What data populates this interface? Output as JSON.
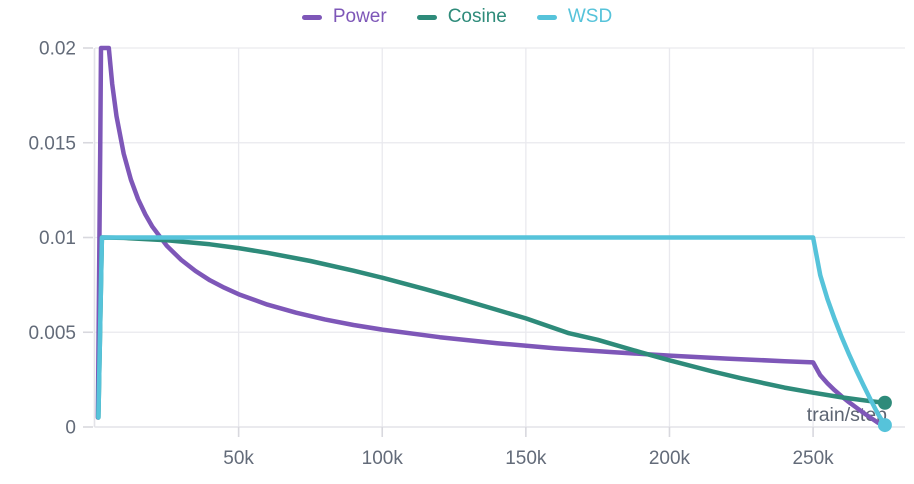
{
  "legend": {
    "items": [
      {
        "label": "Power",
        "color": "#7e57b8"
      },
      {
        "label": "Cosine",
        "color": "#2e8b7a"
      },
      {
        "label": "WSD",
        "color": "#56c3da"
      }
    ]
  },
  "chart_data": {
    "type": "line",
    "title": "",
    "xlabel": "train/step",
    "ylabel": "",
    "xlim": [
      0,
      282000
    ],
    "ylim": [
      0,
      0.02
    ],
    "grid": true,
    "legend_position": "top-center",
    "xticks": {
      "values": [
        50000,
        100000,
        150000,
        200000,
        250000
      ],
      "labels": [
        "50k",
        "100k",
        "150k",
        "200k",
        "250k"
      ]
    },
    "yticks": {
      "values": [
        0,
        0.005,
        0.01,
        0.015,
        0.02
      ],
      "labels": [
        "0",
        "0.005",
        "0.01",
        "0.015",
        "0.02"
      ]
    },
    "styles": {
      "grid_color": "#e9e9ee",
      "axis_color": "#e3e3e8",
      "tick_color": "#d8d8de",
      "label_color": "#636b79",
      "axis_title_color": "#5d6573",
      "line_width": 4.5,
      "marker_radius": 7
    },
    "series": [
      {
        "name": "Power",
        "color": "#7e57b8",
        "end_marker": false,
        "points": [
          [
            1000,
            0.0005
          ],
          [
            1400,
            0.0075
          ],
          [
            1800,
            0.0145
          ],
          [
            2100,
            0.02
          ],
          [
            4800,
            0.02
          ],
          [
            6000,
            0.0181
          ],
          [
            7500,
            0.0164
          ],
          [
            10000,
            0.01442
          ],
          [
            12500,
            0.01305
          ],
          [
            15000,
            0.01202
          ],
          [
            17500,
            0.01122
          ],
          [
            20000,
            0.01057
          ],
          [
            25000,
            0.00956
          ],
          [
            30000,
            0.00882
          ],
          [
            35000,
            0.00823
          ],
          [
            40000,
            0.00774
          ],
          [
            45000,
            0.00735
          ],
          [
            50000,
            0.00701
          ],
          [
            60000,
            0.00646
          ],
          [
            70000,
            0.00603
          ],
          [
            80000,
            0.00568
          ],
          [
            90000,
            0.00538
          ],
          [
            100000,
            0.00514
          ],
          [
            120000,
            0.00474
          ],
          [
            140000,
            0.00442
          ],
          [
            160000,
            0.00416
          ],
          [
            180000,
            0.00395
          ],
          [
            200000,
            0.00377
          ],
          [
            220000,
            0.00361
          ],
          [
            240000,
            0.00347
          ],
          [
            250000,
            0.00341
          ],
          [
            252500,
            0.00273
          ],
          [
            255000,
            0.00231
          ],
          [
            257500,
            0.00194
          ],
          [
            260000,
            0.00161
          ],
          [
            262500,
            0.00131
          ],
          [
            265000,
            0.00103
          ],
          [
            267500,
            0.00075
          ],
          [
            270000,
            0.00049
          ],
          [
            272500,
            0.00024
          ],
          [
            275000,
            8e-05
          ]
        ]
      },
      {
        "name": "Cosine",
        "color": "#2e8b7a",
        "end_marker": true,
        "points": [
          [
            1200,
            0.0005
          ],
          [
            2400,
            0.01
          ],
          [
            10000,
            0.00998
          ],
          [
            25000,
            0.00986
          ],
          [
            40000,
            0.00964
          ],
          [
            50000,
            0.00944
          ],
          [
            60000,
            0.00919
          ],
          [
            75000,
            0.00876
          ],
          [
            90000,
            0.00825
          ],
          [
            100000,
            0.00788
          ],
          [
            115000,
            0.00727
          ],
          [
            125000,
            0.00685
          ],
          [
            140000,
            0.00618
          ],
          [
            150000,
            0.00573
          ],
          [
            165000,
            0.00495
          ],
          [
            175000,
            0.0046
          ],
          [
            190000,
            0.00394
          ],
          [
            200000,
            0.00352
          ],
          [
            215000,
            0.00293
          ],
          [
            225000,
            0.00257
          ],
          [
            240000,
            0.00208
          ],
          [
            250000,
            0.00181
          ],
          [
            260000,
            0.00156
          ],
          [
            270000,
            0.00136
          ],
          [
            275000,
            0.00128
          ]
        ]
      },
      {
        "name": "WSD",
        "color": "#56c3da",
        "end_marker": true,
        "points": [
          [
            1200,
            0.0005
          ],
          [
            2400,
            0.01
          ],
          [
            250000,
            0.01
          ],
          [
            252500,
            0.008
          ],
          [
            255000,
            0.00676
          ],
          [
            257500,
            0.0057
          ],
          [
            260000,
            0.00473
          ],
          [
            262500,
            0.00384
          ],
          [
            265000,
            0.003
          ],
          [
            267500,
            0.00221
          ],
          [
            270000,
            0.00145
          ],
          [
            272500,
            0.00071
          ],
          [
            275000,
            0.0001
          ]
        ]
      }
    ]
  }
}
